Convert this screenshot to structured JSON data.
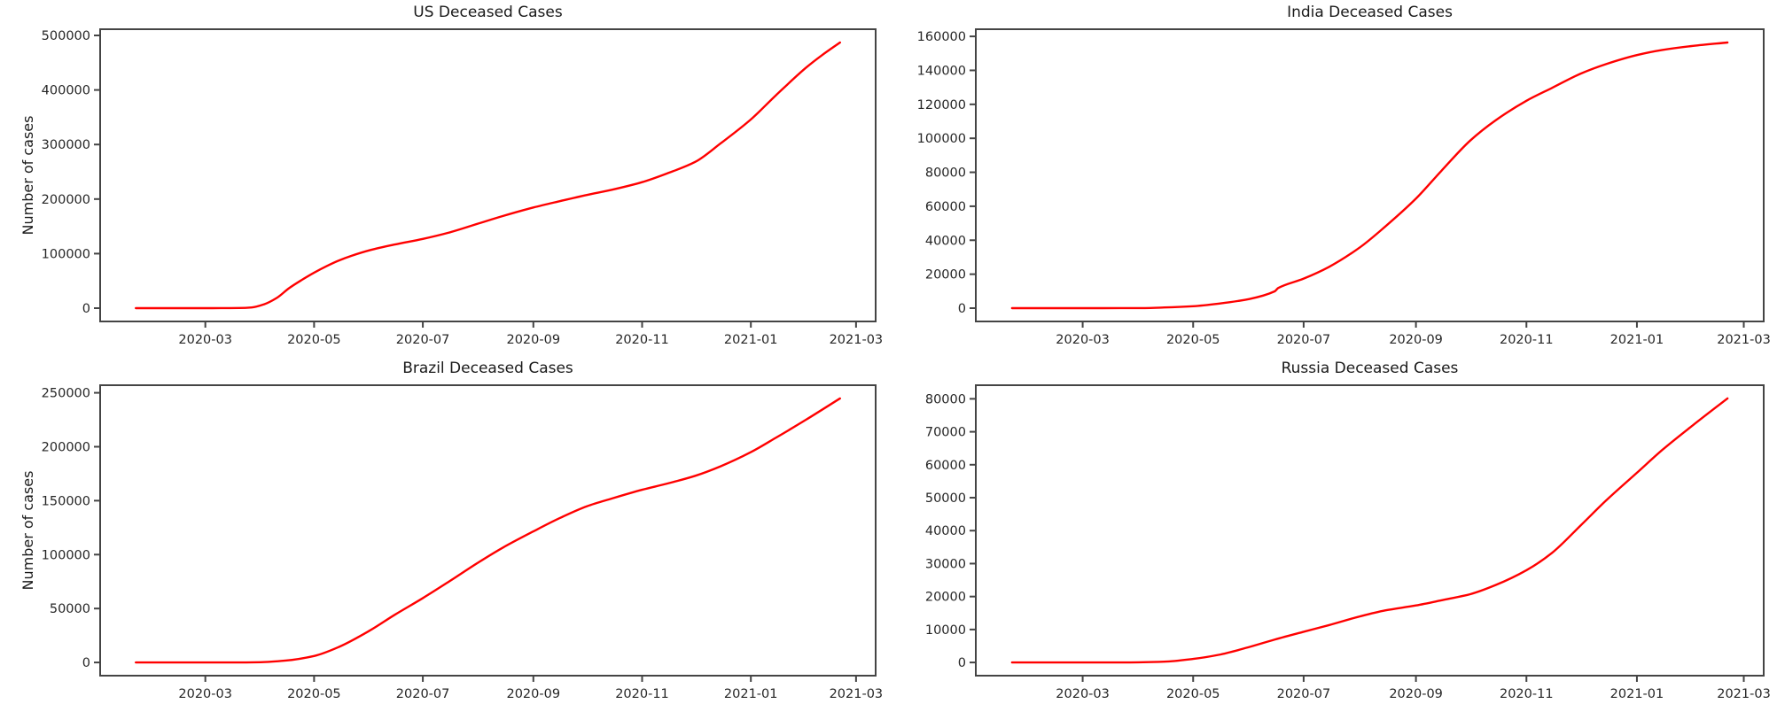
{
  "figure": {
    "background": "#ffffff",
    "text_color": "#1a1a1a",
    "axis_color": "#444444"
  },
  "chart_data": [
    {
      "type": "line",
      "title": "US Deceased Cases",
      "ylabel": "Number of cases",
      "xlabel": "",
      "grid": false,
      "legend": "none",
      "line_color": "#ff0000",
      "xlim": [
        "2020-01-02",
        "2021-03-12"
      ],
      "ylim": [
        -24350,
        511350
      ],
      "y_ticks": [
        0,
        100000,
        200000,
        300000,
        400000,
        500000
      ],
      "x_ticks": [
        {
          "date": "2020-03-01",
          "label": "2020-03"
        },
        {
          "date": "2020-05-01",
          "label": "2020-05"
        },
        {
          "date": "2020-07-01",
          "label": "2020-07"
        },
        {
          "date": "2020-09-01",
          "label": "2020-09"
        },
        {
          "date": "2020-11-01",
          "label": "2020-11"
        },
        {
          "date": "2021-01-01",
          "label": "2021-01"
        },
        {
          "date": "2021-03-01",
          "label": "2021-03"
        }
      ],
      "series": [
        {
          "dates": [
            "2020-01-22",
            "2020-02-29",
            "2020-03-10",
            "2020-03-20",
            "2020-03-27",
            "2020-04-03",
            "2020-04-10",
            "2020-04-17",
            "2020-04-24",
            "2020-05-01",
            "2020-05-08",
            "2020-05-15",
            "2020-05-22",
            "2020-06-01",
            "2020-06-15",
            "2020-07-01",
            "2020-07-15",
            "2020-08-01",
            "2020-08-15",
            "2020-09-01",
            "2020-09-15",
            "2020-10-01",
            "2020-10-15",
            "2020-11-01",
            "2020-11-15",
            "2020-12-01",
            "2020-12-15",
            "2021-01-01",
            "2021-01-15",
            "2021-02-01",
            "2021-02-10",
            "2021-02-20"
          ],
          "values": [
            0,
            1,
            30,
            250,
            1300,
            7100,
            18600,
            36700,
            51500,
            65000,
            77000,
            87500,
            96000,
            106000,
            116500,
            127000,
            138000,
            155000,
            169000,
            184500,
            195500,
            207500,
            217000,
            231000,
            247000,
            268500,
            302000,
            346000,
            390000,
            441000,
            464000,
            487000
          ]
        }
      ]
    },
    {
      "type": "line",
      "title": "India Deceased Cases",
      "ylabel": "",
      "xlabel": "",
      "grid": false,
      "legend": "none",
      "line_color": "#ff0000",
      "xlim": [
        "2020-01-02",
        "2021-03-12"
      ],
      "ylim": [
        -7820,
        164220
      ],
      "y_ticks": [
        0,
        20000,
        40000,
        60000,
        80000,
        100000,
        120000,
        140000,
        160000
      ],
      "x_ticks": [
        {
          "date": "2020-03-01",
          "label": "2020-03"
        },
        {
          "date": "2020-05-01",
          "label": "2020-05"
        },
        {
          "date": "2020-07-01",
          "label": "2020-07"
        },
        {
          "date": "2020-09-01",
          "label": "2020-09"
        },
        {
          "date": "2020-11-01",
          "label": "2020-11"
        },
        {
          "date": "2021-01-01",
          "label": "2021-01"
        },
        {
          "date": "2021-03-01",
          "label": "2021-03"
        }
      ],
      "series": [
        {
          "dates": [
            "2020-01-22",
            "2020-03-12",
            "2020-04-01",
            "2020-04-15",
            "2020-05-01",
            "2020-05-15",
            "2020-06-01",
            "2020-06-15",
            "2020-06-17",
            "2020-07-01",
            "2020-07-15",
            "2020-08-01",
            "2020-08-15",
            "2020-09-01",
            "2020-09-15",
            "2020-10-01",
            "2020-10-15",
            "2020-11-01",
            "2020-11-15",
            "2020-12-01",
            "2020-12-15",
            "2021-01-01",
            "2021-01-15",
            "2021-02-01",
            "2021-02-20"
          ],
          "values": [
            0,
            1,
            35,
            400,
            1150,
            2650,
            5400,
            9900,
            11900,
            17400,
            24300,
            35750,
            48000,
            64500,
            80800,
            98700,
            110600,
            122100,
            129600,
            138100,
            143700,
            149000,
            152000,
            154400,
            156400
          ]
        }
      ]
    },
    {
      "type": "line",
      "title": "Brazil Deceased Cases",
      "ylabel": "Number of cases",
      "xlabel": "",
      "grid": false,
      "legend": "none",
      "line_color": "#ff0000",
      "xlim": [
        "2020-01-02",
        "2021-03-12"
      ],
      "ylim": [
        -12240,
        257040
      ],
      "y_ticks": [
        0,
        50000,
        100000,
        150000,
        200000,
        250000
      ],
      "x_ticks": [
        {
          "date": "2020-03-01",
          "label": "2020-03"
        },
        {
          "date": "2020-05-01",
          "label": "2020-05"
        },
        {
          "date": "2020-07-01",
          "label": "2020-07"
        },
        {
          "date": "2020-09-01",
          "label": "2020-09"
        },
        {
          "date": "2020-11-01",
          "label": "2020-11"
        },
        {
          "date": "2021-01-01",
          "label": "2021-01"
        },
        {
          "date": "2021-03-01",
          "label": "2021-03"
        }
      ],
      "series": [
        {
          "dates": [
            "2020-01-22",
            "2020-03-17",
            "2020-04-01",
            "2020-04-15",
            "2020-05-01",
            "2020-05-15",
            "2020-06-01",
            "2020-06-15",
            "2020-07-01",
            "2020-07-15",
            "2020-08-01",
            "2020-08-15",
            "2020-09-01",
            "2020-09-15",
            "2020-10-01",
            "2020-10-15",
            "2020-11-01",
            "2020-11-15",
            "2020-12-01",
            "2020-12-15",
            "2021-01-01",
            "2021-01-15",
            "2021-02-01",
            "2021-02-20"
          ],
          "values": [
            0,
            1,
            240,
            1736,
            6006,
            14455,
            29341,
            43959,
            59656,
            74262,
            92568,
            106571,
            121515,
            133207,
            144767,
            151966,
            160104,
            165798,
            173165,
            181835,
            194976,
            208291,
            225099,
            244765
          ]
        }
      ]
    },
    {
      "type": "line",
      "title": "Russia Deceased Cases",
      "ylabel": "",
      "xlabel": "",
      "grid": false,
      "legend": "none",
      "line_color": "#ff0000",
      "xlim": [
        "2020-01-02",
        "2021-03-12"
      ],
      "ylim": [
        -4006,
        84132
      ],
      "y_ticks": [
        0,
        10000,
        20000,
        30000,
        40000,
        50000,
        60000,
        70000,
        80000
      ],
      "x_ticks": [
        {
          "date": "2020-03-01",
          "label": "2020-03"
        },
        {
          "date": "2020-05-01",
          "label": "2020-05"
        },
        {
          "date": "2020-07-01",
          "label": "2020-07"
        },
        {
          "date": "2020-09-01",
          "label": "2020-09"
        },
        {
          "date": "2020-11-01",
          "label": "2020-11"
        },
        {
          "date": "2021-01-01",
          "label": "2021-01"
        },
        {
          "date": "2021-03-01",
          "label": "2021-03"
        }
      ],
      "series": [
        {
          "dates": [
            "2020-01-22",
            "2020-03-25",
            "2020-04-15",
            "2020-05-01",
            "2020-05-15",
            "2020-06-01",
            "2020-06-15",
            "2020-07-01",
            "2020-07-15",
            "2020-08-01",
            "2020-08-15",
            "2020-09-01",
            "2020-09-15",
            "2020-10-01",
            "2020-10-15",
            "2020-11-01",
            "2020-11-15",
            "2020-12-01",
            "2020-12-15",
            "2021-01-01",
            "2021-01-15",
            "2021-02-01",
            "2021-02-20"
          ],
          "values": [
            0,
            1,
            232,
            1073,
            2305,
            4693,
            6948,
            9320,
            11335,
            13963,
            15789,
            17299,
            18853,
            20722,
            23491,
            27990,
            33186,
            41607,
            49151,
            57555,
            64495,
            72029,
            80126
          ]
        }
      ]
    }
  ]
}
